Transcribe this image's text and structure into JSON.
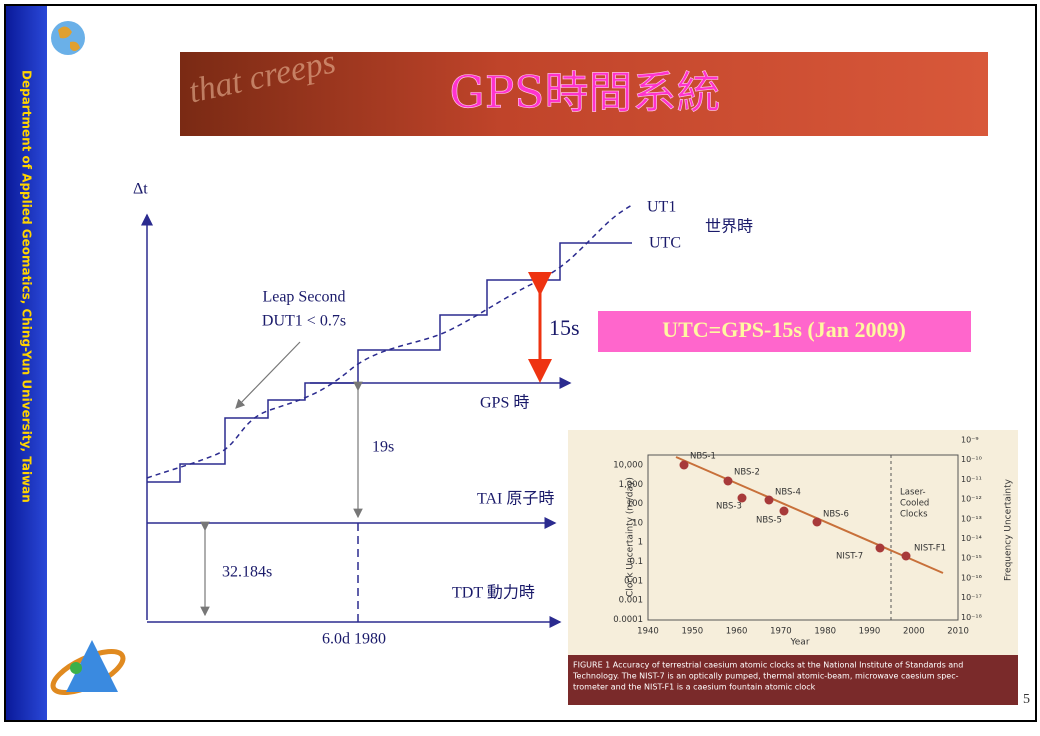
{
  "sidebar": "Department of Applied Geomatics, Ching-Yun University, Taiwan",
  "banner_text": "that creeps",
  "title": "GPS時間系統",
  "diagram": {
    "delta_t": "Δt",
    "ut1": "UT1",
    "utc": "UTC",
    "world_time": "世界時",
    "leap_second": "Leap Second",
    "dut1": "DUT1 < 0.7s",
    "offset_15s": "15s",
    "utc_gps": "UTC=GPS-15s (Jan 2009)",
    "gps_time": "GPS 時",
    "offset_19s": "19s",
    "tai": "TAI 原子時",
    "offset_32": "32.184s",
    "tdt": "TDT 動力時",
    "epoch": "6.0d 1980"
  },
  "figure": {
    "y_ticks": [
      "10,000",
      "1,000",
      "100",
      "10",
      "1",
      "0.1",
      "0.01",
      "0.001",
      "0.0001"
    ],
    "x_ticks": [
      "1940",
      "1950",
      "1960",
      "1970",
      "1980",
      "1990",
      "2000",
      "2010"
    ],
    "right_ticks": [
      "10⁻⁹",
      "10⁻¹⁰",
      "10⁻¹¹",
      "10⁻¹²",
      "10⁻¹³",
      "10⁻¹⁴",
      "10⁻¹⁵",
      "10⁻¹⁶",
      "10⁻¹⁷",
      "10⁻¹⁸"
    ],
    "y_label": "Clock Uncertainty (ns/day)",
    "x_label": "Year",
    "right_label": "Frequency Uncertainty",
    "points": [
      "NBS-1",
      "NBS-2",
      "NBS-3",
      "NBS-4",
      "NBS-5",
      "NBS-6",
      "NIST-7",
      "NIST-F1"
    ],
    "laser": [
      "Laser-",
      "Cooled",
      "Clocks"
    ],
    "caption": [
      "FIGURE 1 Accuracy of terrestrial caesium atomic clocks at the National Institute of Standards and",
      "Technology. The NIST-7 is an optically pumped, thermal atomic-beam, microwave caesium spec-",
      "trometer and the NIST-F1 is a caesium fountain atomic clock"
    ]
  },
  "page_number": "5"
}
